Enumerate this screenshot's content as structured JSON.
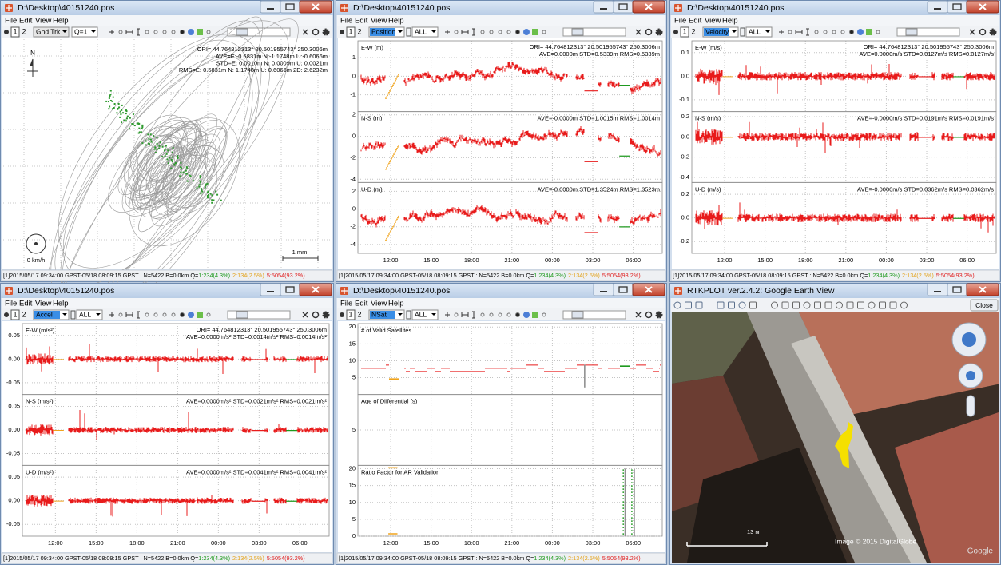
{
  "file_title": "D:\\Desktop\\40151240.pos",
  "menu": [
    "File",
    "Edit",
    "View",
    "Help"
  ],
  "frames": [
    "1",
    "2"
  ],
  "status": {
    "prefix": "[1]2015/05/17 09:34:00 GPST-05/18 08:09:15 GPST : N=5422 B=0.0km Q=",
    "q1": "1:234(4.3%)",
    "q2": "2:134(2.5%)",
    "q5": "5:5054(93.2%)"
  },
  "time_ticks": [
    "12:00",
    "15:00",
    "18:00",
    "21:00",
    "00:00",
    "03:00",
    "06:00"
  ],
  "origin": "ORI= 44.764812313°   20.501955743° 250.3006m",
  "ground_track": {
    "plot_type": "Gnd Trk",
    "quality": "Q=1",
    "stats": [
      "AVE=E:-0.5831m N:-1.1748m U:-0.6066m",
      "STD=E: 0.0010m N: 0.0009m U: 0.0021m",
      "RMS=E: 0.5831m N: 1.1748m U: 0.6066m 2D: 2.6232m"
    ],
    "north": "N",
    "speed": "0 km/h",
    "scale": "1 mm"
  },
  "plots": [
    {
      "plot_type": "Position",
      "solution": "ALL",
      "panels": [
        {
          "label": "E-W (m)",
          "stats": "AVE=0.0000m STD=0.5339m RMS=0.5339m",
          "ylim": [
            -1.9,
            1.9
          ],
          "yticks": [
            1,
            0,
            -1
          ]
        },
        {
          "label": "N-S (m)",
          "stats": "AVE=-0.0000m STD=1.0015m RMS=1.0014m",
          "ylim": [
            -4.3,
            2.3
          ],
          "yticks": [
            2,
            0,
            -2,
            -4
          ]
        },
        {
          "label": "U-D (m)",
          "stats": "AVE=-0.0000m STD=1.3524m RMS=1.3523m",
          "ylim": [
            -5,
            3
          ],
          "yticks": [
            2,
            0,
            -2,
            -4
          ]
        }
      ]
    },
    {
      "plot_type": "Velocity",
      "solution": "ALL",
      "panels": [
        {
          "label": "E-W (m/s)",
          "stats": "AVE=0.0000m/s STD=0.0127m/s RMS=0.0127m/s",
          "ylim": [
            -0.15,
            0.15
          ],
          "yticks": [
            0.1,
            {
              "value": 0,
              "label": "0.0"
            },
            -0.1
          ]
        },
        {
          "label": "N-S (m/s)",
          "stats": "AVE=-0.0000m/s STD=0.0191m/s RMS=0.0191m/s",
          "ylim": [
            -0.45,
            0.25
          ],
          "yticks": [
            0.2,
            {
              "value": 0,
              "label": "0.0"
            },
            -0.2,
            -0.4
          ]
        },
        {
          "label": "U-D (m/s)",
          "stats": "AVE=-0.0000m/s STD=0.0362m/s RMS=0.0362m/s",
          "ylim": [
            -0.3,
            0.3
          ],
          "yticks": [
            0.2,
            {
              "value": 0,
              "label": "0.0"
            },
            -0.2
          ]
        }
      ]
    },
    {
      "plot_type": "Accel",
      "solution": "ALL",
      "panels": [
        {
          "label": "E-W (m/s²)",
          "stats": "AVE=0.0000m/s² STD=0.0014m/s² RMS=0.0014m/s²",
          "ylim": [
            -0.075,
            0.075
          ],
          "yticks": [
            0.05,
            {
              "value": 0,
              "label": "0.00"
            },
            -0.05
          ]
        },
        {
          "label": "N-S (m/s²)",
          "stats": "AVE=0.0000m/s² STD=0.0021m/s² RMS=0.0021m/s²",
          "ylim": [
            -0.075,
            0.075
          ],
          "yticks": [
            0.05,
            {
              "value": 0,
              "label": "0.00"
            },
            -0.05
          ]
        },
        {
          "label": "U-D (m/s²)",
          "stats": "AVE=0.0000m/s² STD=0.0041m/s² RMS=0.0041m/s²",
          "ylim": [
            -0.075,
            0.075
          ],
          "yticks": [
            0.05,
            {
              "value": 0,
              "label": "0.00"
            },
            -0.05
          ]
        }
      ]
    },
    {
      "plot_type": "NSat",
      "solution": "ALL",
      "panels": [
        {
          "label": "# of Valid Satellites",
          "ylim": [
            0,
            21
          ],
          "yticks": [
            20,
            15,
            10,
            5
          ]
        },
        {
          "label": "Age of Differential (s)",
          "ylim": [
            0,
            10
          ],
          "yticks": [
            5
          ]
        },
        {
          "label": "Ratio Factor for AR Validation",
          "ylim": [
            0,
            21
          ],
          "yticks": [
            20,
            15,
            10,
            5,
            0
          ]
        }
      ]
    }
  ],
  "earth": {
    "title": "RTKPLOT ver.2.4.2: Google Earth View",
    "close": "Close",
    "credit": "Image © 2015 DigitalGlobe",
    "scale": "13 м",
    "logo": "Google"
  }
}
